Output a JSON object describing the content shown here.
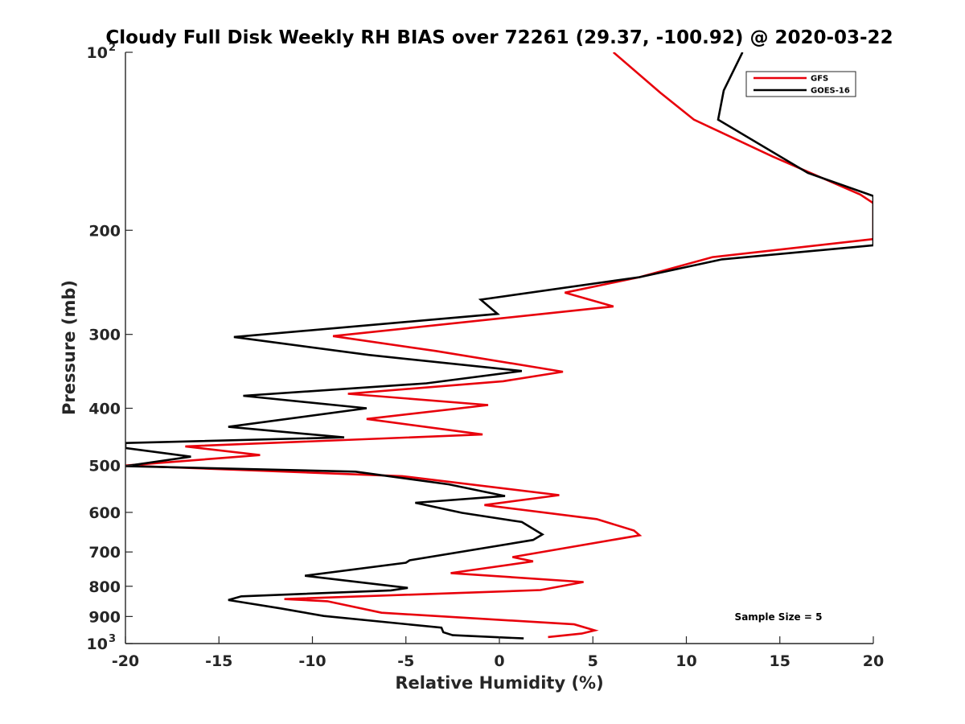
{
  "chart_data": {
    "type": "line",
    "title": "Cloudy Full Disk Weekly RH BIAS over 72261 (29.37, -100.92) @ 2020-03-22",
    "xlabel": "Relative Humidity (%)",
    "ylabel": "Pressure (mb)",
    "xlim": [
      -20,
      20
    ],
    "ylim": [
      1000,
      100
    ],
    "y_scale": "log",
    "grid": false,
    "legend_position": "top-right",
    "x_ticks": [
      {
        "value": -20,
        "label": "-20"
      },
      {
        "value": -15,
        "label": "-15"
      },
      {
        "value": -10,
        "label": "-10"
      },
      {
        "value": -5,
        "label": "-5"
      },
      {
        "value": 0,
        "label": "0"
      },
      {
        "value": 5,
        "label": "5"
      },
      {
        "value": 10,
        "label": "10"
      },
      {
        "value": 15,
        "label": "15"
      },
      {
        "value": 20,
        "label": "20"
      }
    ],
    "y_ticks": [
      {
        "value": 100,
        "label": "10",
        "sup": "2"
      },
      {
        "value": 200,
        "label": "200",
        "sup": ""
      },
      {
        "value": 300,
        "label": "300",
        "sup": ""
      },
      {
        "value": 400,
        "label": "400",
        "sup": ""
      },
      {
        "value": 500,
        "label": "500",
        "sup": ""
      },
      {
        "value": 600,
        "label": "600",
        "sup": ""
      },
      {
        "value": 700,
        "label": "700",
        "sup": ""
      },
      {
        "value": 800,
        "label": "800",
        "sup": ""
      },
      {
        "value": 900,
        "label": "900",
        "sup": ""
      },
      {
        "value": 1000,
        "label": "10",
        "sup": "3"
      }
    ],
    "annotation": "Sample Size = 5",
    "series": [
      {
        "name": "GFS",
        "color": "#e8000b",
        "points": [
          [
            2.6,
            975
          ],
          [
            4.4,
            962
          ],
          [
            5.1,
            950
          ],
          [
            4.0,
            928
          ],
          [
            -6.3,
            887
          ],
          [
            -9.2,
            848
          ],
          [
            -11.5,
            841
          ],
          [
            2.2,
            812
          ],
          [
            4.5,
            787
          ],
          [
            -2.6,
            760
          ],
          [
            1.8,
            726
          ],
          [
            0.7,
            714
          ],
          [
            7.5,
            656
          ],
          [
            7.2,
            644
          ],
          [
            5.2,
            616
          ],
          [
            -0.8,
            583
          ],
          [
            3.2,
            561
          ],
          [
            -5.2,
            521
          ],
          [
            -20.0,
            500
          ],
          [
            -12.8,
            480
          ],
          [
            -16.8,
            464
          ],
          [
            -0.9,
            443
          ],
          [
            -7.1,
            417
          ],
          [
            -0.6,
            395
          ],
          [
            -8.1,
            378
          ],
          [
            0.2,
            360
          ],
          [
            3.4,
            347
          ],
          [
            -3.4,
            320
          ],
          [
            -8.9,
            302
          ],
          [
            6.1,
            269
          ],
          [
            3.5,
            255
          ],
          [
            7.5,
            240
          ],
          [
            11.4,
            222
          ],
          [
            20.0,
            207
          ],
          [
            20.0,
            180
          ],
          [
            19.3,
            174
          ],
          [
            14.6,
            150
          ],
          [
            10.4,
            130
          ],
          [
            8.6,
            117
          ],
          [
            6.1,
            100
          ]
        ]
      },
      {
        "name": "GOES-16",
        "color": "#000000",
        "points": [
          [
            1.3,
            980
          ],
          [
            -2.5,
            968
          ],
          [
            -3.0,
            957
          ],
          [
            -3.1,
            940
          ],
          [
            -9.4,
            898
          ],
          [
            -11.7,
            872
          ],
          [
            -14.5,
            844
          ],
          [
            -13.8,
            832
          ],
          [
            -5.8,
            813
          ],
          [
            -4.9,
            805
          ],
          [
            -10.4,
            768
          ],
          [
            -5.0,
            730
          ],
          [
            -4.8,
            723
          ],
          [
            1.8,
            668
          ],
          [
            2.3,
            654
          ],
          [
            1.2,
            623
          ],
          [
            -2.0,
            601
          ],
          [
            -4.5,
            578
          ],
          [
            0.3,
            563
          ],
          [
            -2.7,
            538
          ],
          [
            -7.7,
            512
          ],
          [
            -20.0,
            501
          ],
          [
            -16.5,
            483
          ],
          [
            -20.0,
            467
          ],
          [
            -20.0,
            458
          ],
          [
            -8.3,
            448
          ],
          [
            -14.5,
            430
          ],
          [
            -7.1,
            400
          ],
          [
            -13.7,
            381
          ],
          [
            -3.9,
            363
          ],
          [
            1.2,
            346
          ],
          [
            -7.0,
            325
          ],
          [
            -14.2,
            303
          ],
          [
            -0.1,
            277
          ],
          [
            -1.0,
            262
          ],
          [
            7.5,
            240
          ],
          [
            11.9,
            224
          ],
          [
            20.0,
            212
          ],
          [
            20.0,
            175
          ],
          [
            16.5,
            160
          ],
          [
            11.7,
            130
          ],
          [
            12.0,
            116
          ],
          [
            13.0,
            100
          ]
        ]
      }
    ]
  }
}
